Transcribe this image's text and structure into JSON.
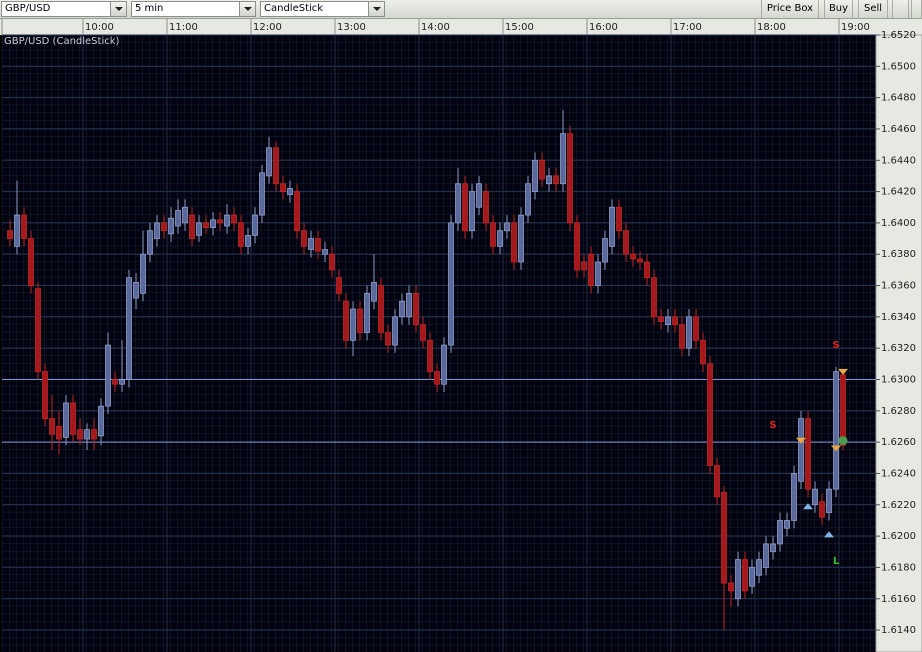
{
  "toolbar": {
    "symbol": "GBP/USD",
    "interval": "5 min",
    "chart_type": "CandleStick",
    "buttons": [
      "Price Box",
      "Buy",
      "Sell"
    ]
  },
  "chart_data": {
    "type": "candlestick",
    "title": "GBP/USD (CandleStick)",
    "categories": [
      null,
      null,
      null,
      null,
      null,
      null,
      null,
      null,
      null,
      null,
      null,
      "10:00",
      null,
      null,
      null,
      null,
      null,
      null,
      null,
      null,
      null,
      null,
      null,
      "11:00",
      null,
      null,
      null,
      null,
      null,
      null,
      null,
      null,
      null,
      null,
      null,
      "12:00",
      null,
      null,
      null,
      null,
      null,
      null,
      null,
      null,
      null,
      null,
      null,
      "13:00",
      null,
      null,
      null,
      null,
      null,
      null,
      null,
      null,
      null,
      null,
      null,
      "14:00",
      null,
      null,
      null,
      null,
      null,
      null,
      null,
      null,
      null,
      null,
      null,
      "15:00",
      null,
      null,
      null,
      null,
      null,
      null,
      null,
      null,
      null,
      null,
      null,
      "16:00",
      null,
      null,
      null,
      null,
      null,
      null,
      null,
      null,
      null,
      null,
      null,
      "17:00",
      null,
      null,
      null,
      null,
      null,
      null,
      null,
      null,
      null,
      null,
      null,
      "18:00",
      null,
      null,
      null,
      null,
      null,
      null,
      null,
      null,
      null,
      null,
      null,
      "19:00"
    ],
    "ohlc": [
      [
        1.6395,
        1.6402,
        1.6385,
        1.639
      ],
      [
        1.6385,
        1.6427,
        1.638,
        1.6405
      ],
      [
        1.6405,
        1.641,
        1.6385,
        1.639
      ],
      [
        1.639,
        1.6395,
        1.6355,
        1.636
      ],
      [
        1.6358,
        1.6362,
        1.63,
        1.6305
      ],
      [
        1.6305,
        1.631,
        1.627,
        1.6275
      ],
      [
        1.6275,
        1.629,
        1.6255,
        1.6265
      ],
      [
        1.627,
        1.628,
        1.6252,
        1.6262
      ],
      [
        1.6263,
        1.629,
        1.6258,
        1.6285
      ],
      [
        1.6285,
        1.629,
        1.626,
        1.6265
      ],
      [
        1.6268,
        1.6275,
        1.6258,
        1.6262
      ],
      [
        1.6262,
        1.6272,
        1.6255,
        1.6268
      ],
      [
        1.6268,
        1.6275,
        1.6255,
        1.6262
      ],
      [
        1.6264,
        1.6288,
        1.6258,
        1.6283
      ],
      [
        1.6283,
        1.633,
        1.6278,
        1.6322
      ],
      [
        1.63,
        1.6305,
        1.6292,
        1.6297
      ],
      [
        1.6297,
        1.6325,
        1.6292,
        1.63
      ],
      [
        1.63,
        1.637,
        1.6295,
        1.6365
      ],
      [
        1.6352,
        1.6368,
        1.6345,
        1.6362
      ],
      [
        1.6355,
        1.6395,
        1.635,
        1.638
      ],
      [
        1.638,
        1.64,
        1.6375,
        1.6395
      ],
      [
        1.639,
        1.6405,
        1.6385,
        1.64
      ],
      [
        1.64,
        1.6405,
        1.639,
        1.6395
      ],
      [
        1.6393,
        1.641,
        1.6388,
        1.6403
      ],
      [
        1.6398,
        1.6415,
        1.6393,
        1.6408
      ],
      [
        1.64,
        1.6415,
        1.6395,
        1.641
      ],
      [
        1.6405,
        1.641,
        1.6385,
        1.639
      ],
      [
        1.6392,
        1.6405,
        1.6388,
        1.64
      ],
      [
        1.64,
        1.6405,
        1.6393,
        1.6397
      ],
      [
        1.6397,
        1.6407,
        1.6392,
        1.6402
      ],
      [
        1.6402,
        1.6407,
        1.6395,
        1.64
      ],
      [
        1.6398,
        1.6412,
        1.6393,
        1.6405
      ],
      [
        1.6405,
        1.641,
        1.6395,
        1.64
      ],
      [
        1.64,
        1.6405,
        1.638,
        1.6385
      ],
      [
        1.6385,
        1.6397,
        1.638,
        1.6392
      ],
      [
        1.6392,
        1.641,
        1.6387,
        1.6405
      ],
      [
        1.6405,
        1.6437,
        1.64,
        1.6432
      ],
      [
        1.643,
        1.6455,
        1.6425,
        1.6448
      ],
      [
        1.6448,
        1.6452,
        1.642,
        1.6425
      ],
      [
        1.6425,
        1.643,
        1.6415,
        1.642
      ],
      [
        1.6418,
        1.6427,
        1.6413,
        1.6422
      ],
      [
        1.642,
        1.6425,
        1.639,
        1.6395
      ],
      [
        1.6395,
        1.64,
        1.638,
        1.6385
      ],
      [
        1.6383,
        1.6395,
        1.6378,
        1.639
      ],
      [
        1.639,
        1.6395,
        1.6377,
        1.6382
      ],
      [
        1.638,
        1.6388,
        1.6375,
        1.6383
      ],
      [
        1.638,
        1.6385,
        1.6365,
        1.637
      ],
      [
        1.6365,
        1.637,
        1.635,
        1.6355
      ],
      [
        1.635,
        1.6355,
        1.632,
        1.6325
      ],
      [
        1.6325,
        1.635,
        1.6315,
        1.6345
      ],
      [
        1.6345,
        1.635,
        1.6325,
        1.633
      ],
      [
        1.633,
        1.636,
        1.6325,
        1.6355
      ],
      [
        1.635,
        1.638,
        1.6345,
        1.6362
      ],
      [
        1.636,
        1.6365,
        1.6325,
        1.633
      ],
      [
        1.633,
        1.6335,
        1.6317,
        1.6322
      ],
      [
        1.6322,
        1.6345,
        1.6317,
        1.634
      ],
      [
        1.634,
        1.6355,
        1.6335,
        1.635
      ],
      [
        1.634,
        1.636,
        1.6335,
        1.6355
      ],
      [
        1.6355,
        1.636,
        1.633,
        1.6335
      ],
      [
        1.6335,
        1.634,
        1.632,
        1.6325
      ],
      [
        1.6325,
        1.633,
        1.63,
        1.6305
      ],
      [
        1.6305,
        1.631,
        1.6292,
        1.6297
      ],
      [
        1.6297,
        1.6327,
        1.6292,
        1.6322
      ],
      [
        1.6322,
        1.6405,
        1.6317,
        1.64
      ],
      [
        1.64,
        1.6435,
        1.6395,
        1.6425
      ],
      [
        1.6425,
        1.643,
        1.639,
        1.6395
      ],
      [
        1.6395,
        1.6425,
        1.639,
        1.642
      ],
      [
        1.641,
        1.643,
        1.6405,
        1.6425
      ],
      [
        1.642,
        1.6425,
        1.6395,
        1.64
      ],
      [
        1.64,
        1.6405,
        1.638,
        1.6385
      ],
      [
        1.6385,
        1.64,
        1.638,
        1.6395
      ],
      [
        1.6395,
        1.6405,
        1.639,
        1.64
      ],
      [
        1.64,
        1.6405,
        1.637,
        1.6375
      ],
      [
        1.6375,
        1.641,
        1.637,
        1.6405
      ],
      [
        1.6405,
        1.643,
        1.64,
        1.6425
      ],
      [
        1.642,
        1.6445,
        1.6415,
        1.644
      ],
      [
        1.644,
        1.6445,
        1.6423,
        1.6428
      ],
      [
        1.6425,
        1.6435,
        1.642,
        1.643
      ],
      [
        1.643,
        1.6435,
        1.642,
        1.6425
      ],
      [
        1.6425,
        1.6472,
        1.642,
        1.6457
      ],
      [
        1.6457,
        1.6462,
        1.6395,
        1.64
      ],
      [
        1.64,
        1.6405,
        1.6365,
        1.637
      ],
      [
        1.6375,
        1.638,
        1.6365,
        1.637
      ],
      [
        1.638,
        1.6385,
        1.6355,
        1.636
      ],
      [
        1.636,
        1.638,
        1.6355,
        1.6375
      ],
      [
        1.6375,
        1.6395,
        1.637,
        1.639
      ],
      [
        1.6385,
        1.6415,
        1.638,
        1.641
      ],
      [
        1.641,
        1.6415,
        1.639,
        1.6395
      ],
      [
        1.6395,
        1.64,
        1.6375,
        1.638
      ],
      [
        1.638,
        1.6385,
        1.6372,
        1.6377
      ],
      [
        1.6377,
        1.6382,
        1.637,
        1.6375
      ],
      [
        1.6375,
        1.638,
        1.636,
        1.6365
      ],
      [
        1.6365,
        1.637,
        1.6335,
        1.634
      ],
      [
        1.634,
        1.6345,
        1.6332,
        1.6337
      ],
      [
        1.6335,
        1.6345,
        1.633,
        1.634
      ],
      [
        1.634,
        1.6345,
        1.633,
        1.6335
      ],
      [
        1.6335,
        1.634,
        1.6315,
        1.632
      ],
      [
        1.632,
        1.6345,
        1.6315,
        1.634
      ],
      [
        1.634,
        1.6345,
        1.632,
        1.6325
      ],
      [
        1.6325,
        1.633,
        1.6305,
        1.631
      ],
      [
        1.631,
        1.6315,
        1.624,
        1.6245
      ],
      [
        1.6245,
        1.625,
        1.622,
        1.6225
      ],
      [
        1.6228,
        1.6232,
        1.614,
        1.617
      ],
      [
        1.617,
        1.6175,
        1.6155,
        1.6165
      ],
      [
        1.616,
        1.619,
        1.6155,
        1.6185
      ],
      [
        1.6185,
        1.619,
        1.616,
        1.6165
      ],
      [
        1.6168,
        1.6185,
        1.6163,
        1.618
      ],
      [
        1.6175,
        1.619,
        1.617,
        1.6185
      ],
      [
        1.618,
        1.62,
        1.6175,
        1.6195
      ],
      [
        1.619,
        1.62,
        1.6185,
        1.6195
      ],
      [
        1.6195,
        1.6215,
        1.619,
        1.621
      ],
      [
        1.6205,
        1.6215,
        1.62,
        1.621
      ],
      [
        1.621,
        1.6245,
        1.6205,
        1.624
      ],
      [
        1.6235,
        1.628,
        1.623,
        1.6275
      ],
      [
        1.6275,
        1.628,
        1.6225,
        1.623
      ],
      [
        1.622,
        1.6235,
        1.6215,
        1.623
      ],
      [
        1.6222,
        1.6227,
        1.6207,
        1.6212
      ],
      [
        1.6215,
        1.6235,
        1.621,
        1.623
      ],
      [
        1.623,
        1.6308,
        1.6225,
        1.6305
      ],
      [
        1.6303,
        1.6306,
        1.6255,
        1.6258
      ]
    ],
    "up_color": "#5a6a9c",
    "down_color": "#a3191c",
    "ylim": [
      1.6126,
      1.652
    ],
    "yticks": [
      {
        "value": 1.614,
        "label": "1.6140"
      },
      {
        "value": 1.616,
        "label": "1.6160"
      },
      {
        "value": 1.618,
        "label": "1.6180"
      },
      {
        "value": 1.62,
        "label": "1.6200"
      },
      {
        "value": 1.622,
        "label": "1.6220"
      },
      {
        "value": 1.624,
        "label": "1.6240"
      },
      {
        "value": 1.626,
        "label": "1.6260"
      },
      {
        "value": 1.628,
        "label": "1.6280"
      },
      {
        "value": 1.63,
        "label": "1.6300"
      },
      {
        "value": 1.632,
        "label": "1.6320"
      },
      {
        "value": 1.634,
        "label": "1.6340"
      },
      {
        "value": 1.636,
        "label": "1.6360"
      },
      {
        "value": 1.638,
        "label": "1.6380"
      },
      {
        "value": 1.64,
        "label": "1.6400"
      },
      {
        "value": 1.642,
        "label": "1.6420"
      },
      {
        "value": 1.644,
        "label": "1.6440"
      },
      {
        "value": 1.646,
        "label": "1.6460"
      },
      {
        "value": 1.648,
        "label": "1.6480"
      },
      {
        "value": 1.65,
        "label": "1.6500"
      },
      {
        "value": 1.652,
        "label": "1.6520"
      }
    ],
    "grid": true,
    "hlines": [
      {
        "value": 1.63,
        "color": "#7f93d8"
      },
      {
        "value": 1.626,
        "color": "#7f93d8"
      }
    ],
    "markers": [
      {
        "shape": "down",
        "x": 113,
        "value": 1.6259,
        "color": "#e8a848"
      },
      {
        "shape": "down",
        "x": 119,
        "value": 1.6303,
        "color": "#e8a848"
      },
      {
        "shape": "down",
        "x": 118,
        "value": 1.6254,
        "color": "#e8a848"
      },
      {
        "shape": "up",
        "x": 114,
        "value": 1.6221,
        "color": "#7fb8e8"
      },
      {
        "shape": "up",
        "x": 117,
        "value": 1.6203,
        "color": "#7fb8e8"
      },
      {
        "shape": "circle",
        "x": 119,
        "value": 1.6261,
        "color": "#4c9a4c"
      }
    ],
    "annotations": [
      {
        "text": "S",
        "x": 109,
        "value": 1.6271,
        "color": "#e0201c"
      },
      {
        "text": "S",
        "x": 118,
        "value": 1.6322,
        "color": "#e0201c"
      },
      {
        "text": "L",
        "x": 118,
        "value": 1.6184,
        "color": "#2cc02c"
      }
    ]
  }
}
